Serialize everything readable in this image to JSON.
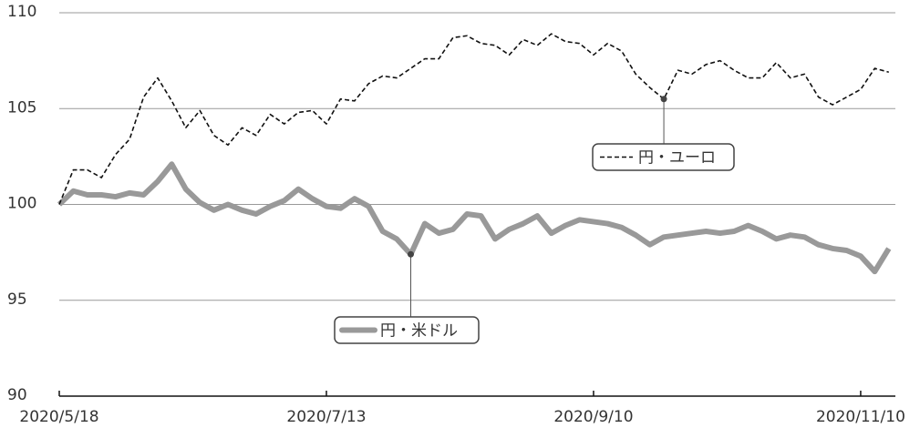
{
  "chart_data": {
    "type": "line",
    "categories": [
      "2020/5/18",
      null,
      null,
      null,
      null,
      null,
      null,
      null,
      null,
      null,
      null,
      null,
      null,
      null,
      null,
      null,
      null,
      null,
      null,
      "2020/7/13",
      null,
      null,
      null,
      null,
      null,
      null,
      null,
      null,
      null,
      null,
      null,
      null,
      null,
      null,
      null,
      null,
      null,
      null,
      "2020/9/10",
      null,
      null,
      null,
      null,
      null,
      null,
      null,
      null,
      null,
      null,
      null,
      null,
      null,
      null,
      null,
      null,
      null,
      null,
      "2020/11/10",
      null,
      null
    ],
    "series": [
      {
        "name": "円・ユーロ",
        "color": "#111111",
        "values": [
          100.0,
          101.8,
          101.8,
          101.4,
          102.6,
          103.4,
          105.6,
          106.6,
          105.4,
          104.0,
          104.9,
          103.6,
          103.1,
          104.0,
          103.6,
          104.7,
          104.2,
          104.8,
          104.9,
          104.2,
          105.5,
          105.4,
          106.3,
          106.7,
          106.6,
          107.1,
          107.6,
          107.6,
          108.7,
          108.8,
          108.4,
          108.3,
          107.8,
          108.6,
          108.3,
          108.9,
          108.5,
          108.4,
          107.8,
          108.4,
          108.0,
          106.8,
          106.1,
          105.5,
          107.0,
          106.8,
          107.3,
          107.5,
          107.0,
          106.6,
          106.6,
          107.4,
          106.6,
          106.8,
          105.6,
          105.2,
          105.6,
          106.0,
          107.1,
          106.9
        ]
      },
      {
        "name": "円・米ドル",
        "color": "#999999",
        "values": [
          100.0,
          100.7,
          100.5,
          100.5,
          100.4,
          100.6,
          100.5,
          101.2,
          102.1,
          100.8,
          100.1,
          99.7,
          100.0,
          99.7,
          99.5,
          99.9,
          100.2,
          100.8,
          100.3,
          99.9,
          99.8,
          100.3,
          99.9,
          98.6,
          98.2,
          97.4,
          99.0,
          98.5,
          98.7,
          99.5,
          99.4,
          98.2,
          98.7,
          99.0,
          99.4,
          98.5,
          98.9,
          99.2,
          99.1,
          99.0,
          98.8,
          98.4,
          97.9,
          98.3,
          98.4,
          98.5,
          98.6,
          98.5,
          98.6,
          98.9,
          98.6,
          98.2,
          98.4,
          98.3,
          97.9,
          97.7,
          97.6,
          97.3,
          96.5,
          97.7
        ]
      }
    ],
    "ylim": [
      90,
      110
    ],
    "yticks": [
      90,
      95,
      100,
      105,
      110
    ],
    "grid": true
  }
}
